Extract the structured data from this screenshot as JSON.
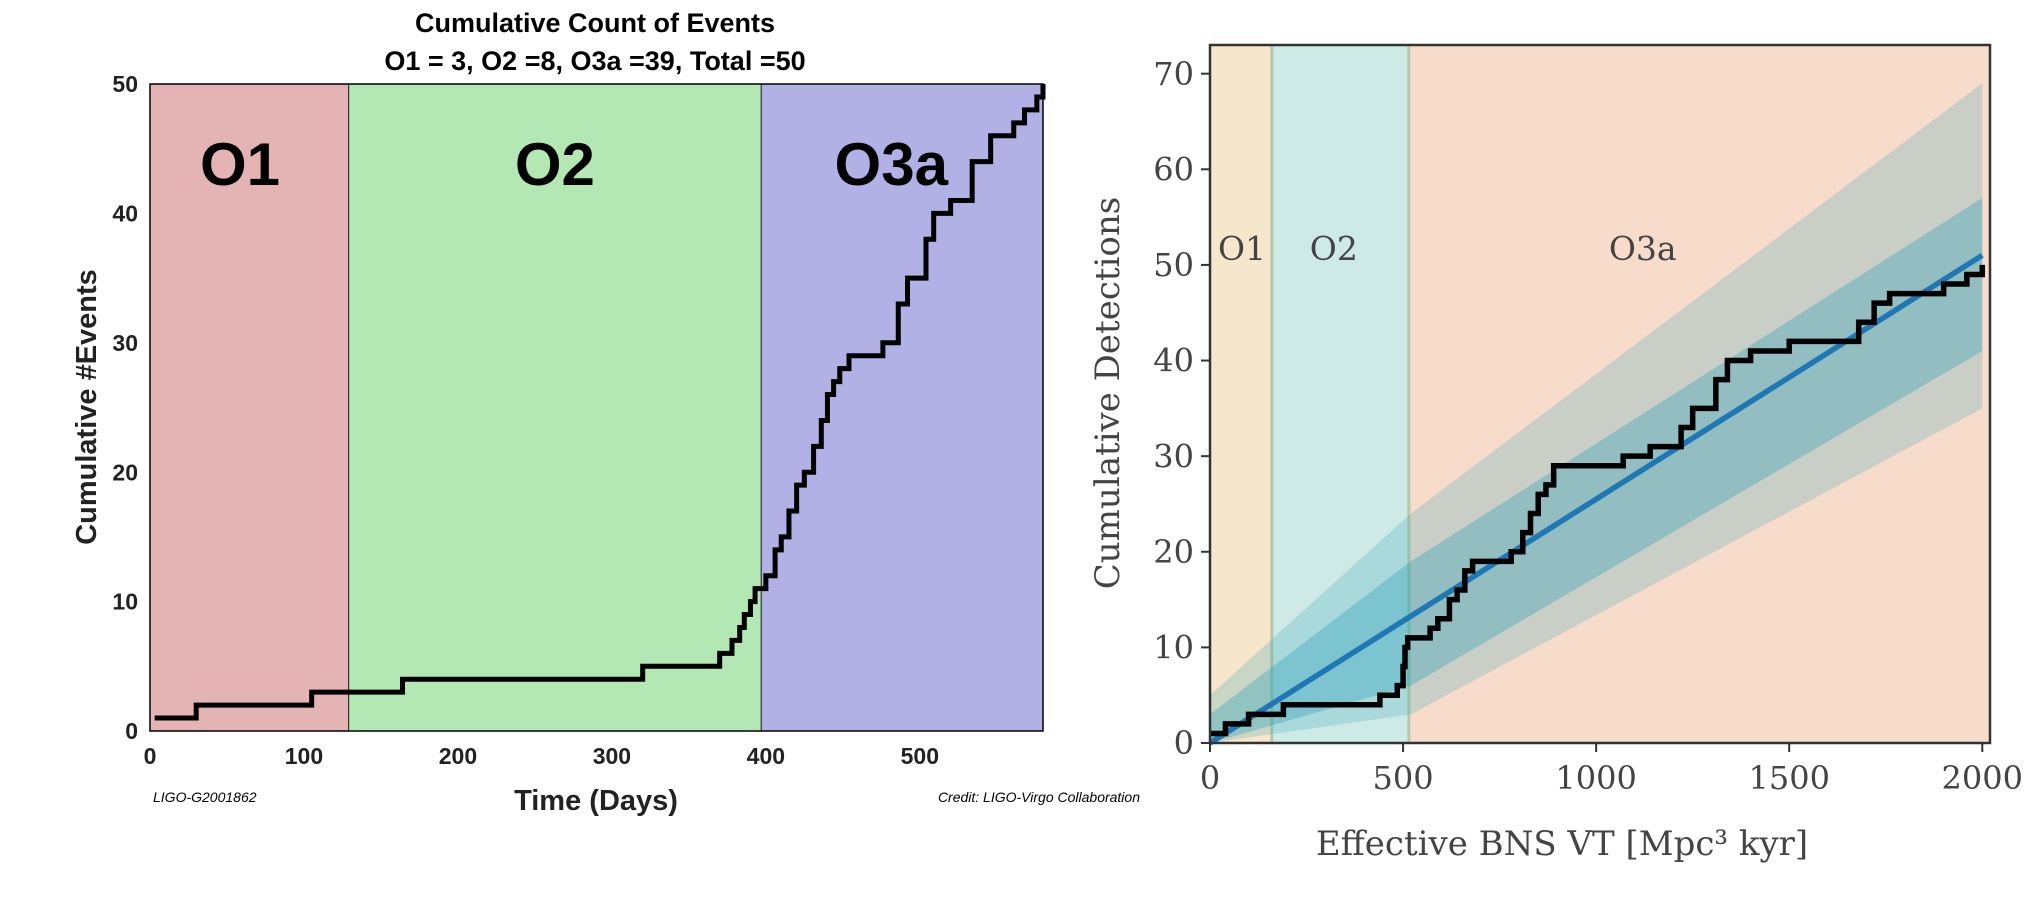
{
  "chart_data": [
    {
      "type": "line",
      "title": "Cumulative Count of Events",
      "subtitle": "O1 = 3, O2 =8, O3a =39, Total =50",
      "xlabel": "Time (Days)",
      "ylabel": "Cumulative #Events",
      "xlim": [
        0,
        580
      ],
      "ylim": [
        0,
        50
      ],
      "xticks": [
        0,
        100,
        200,
        300,
        400,
        500
      ],
      "yticks": [
        0,
        10,
        20,
        30,
        40,
        50
      ],
      "regions": [
        {
          "label": "O1",
          "start": 0,
          "end": 129,
          "color": "#e4b4b4"
        },
        {
          "label": "O2",
          "start": 129,
          "end": 397,
          "color": "#b3e7b3"
        },
        {
          "label": "O3a",
          "start": 397,
          "end": 580,
          "color": "#b1b1e6"
        }
      ],
      "grid": false,
      "footer_left": "LIGO-G2001862",
      "footer_right": "Credit: LIGO-Virgo Collaboration",
      "series": [
        {
          "color": "#000000",
          "points": [
            [
              3,
              1
            ],
            [
              30,
              1
            ],
            [
              30,
              2
            ],
            [
              105,
              2
            ],
            [
              105,
              3
            ],
            [
              164,
              3
            ],
            [
              164,
              4
            ],
            [
              320,
              4
            ],
            [
              320,
              5
            ],
            [
              370,
              5
            ],
            [
              370,
              6
            ],
            [
              378,
              6
            ],
            [
              378,
              7
            ],
            [
              383,
              7
            ],
            [
              383,
              8
            ],
            [
              386,
              8
            ],
            [
              386,
              9
            ],
            [
              390,
              9
            ],
            [
              390,
              10
            ],
            [
              393,
              10
            ],
            [
              393,
              11
            ],
            [
              400,
              11
            ],
            [
              400,
              12
            ],
            [
              406,
              12
            ],
            [
              406,
              14
            ],
            [
              410,
              14
            ],
            [
              410,
              15
            ],
            [
              415,
              15
            ],
            [
              415,
              17
            ],
            [
              420,
              17
            ],
            [
              420,
              19
            ],
            [
              425,
              19
            ],
            [
              425,
              20
            ],
            [
              431,
              20
            ],
            [
              431,
              22
            ],
            [
              436,
              22
            ],
            [
              436,
              24
            ],
            [
              440,
              24
            ],
            [
              440,
              26
            ],
            [
              444,
              26
            ],
            [
              444,
              27
            ],
            [
              448,
              27
            ],
            [
              448,
              28
            ],
            [
              454,
              28
            ],
            [
              454,
              29
            ],
            [
              476,
              29
            ],
            [
              476,
              30
            ],
            [
              486,
              30
            ],
            [
              486,
              33
            ],
            [
              492,
              33
            ],
            [
              492,
              35
            ],
            [
              504,
              35
            ],
            [
              504,
              38
            ],
            [
              509,
              38
            ],
            [
              509,
              40
            ],
            [
              520,
              40
            ],
            [
              520,
              41
            ],
            [
              534,
              41
            ],
            [
              534,
              44
            ],
            [
              546,
              44
            ],
            [
              546,
              46
            ],
            [
              561,
              46
            ],
            [
              561,
              47
            ],
            [
              568,
              47
            ],
            [
              568,
              48
            ],
            [
              576,
              48
            ],
            [
              576,
              49
            ],
            [
              580,
              49
            ],
            [
              580,
              50
            ]
          ]
        }
      ]
    },
    {
      "type": "line",
      "xlabel": "Effective BNS VT [Mpc³ kyr]",
      "ylabel": "Cumulative Detections",
      "xlim": [
        0,
        2020
      ],
      "ylim": [
        0,
        73
      ],
      "xticks": [
        0,
        500,
        1000,
        1500,
        2000
      ],
      "yticks": [
        0,
        10,
        20,
        30,
        40,
        50,
        60,
        70
      ],
      "regions": [
        {
          "label": "O1",
          "start": 0,
          "end": 160,
          "color": "#f6e6cb"
        },
        {
          "label": "O2",
          "start": 160,
          "end": 515,
          "color": "#cdeae6"
        },
        {
          "label": "O3a",
          "start": 515,
          "end": 2020,
          "color": "#f7dccb"
        }
      ],
      "grid": false,
      "series": [
        {
          "color": "#000000",
          "points": [
            [
              0,
              1
            ],
            [
              40,
              1
            ],
            [
              40,
              2
            ],
            [
              100,
              2
            ],
            [
              100,
              3
            ],
            [
              190,
              3
            ],
            [
              190,
              4
            ],
            [
              440,
              4
            ],
            [
              440,
              5
            ],
            [
              485,
              5
            ],
            [
              485,
              6
            ],
            [
              500,
              6
            ],
            [
              500,
              8
            ],
            [
              505,
              8
            ],
            [
              505,
              10
            ],
            [
              512,
              10
            ],
            [
              512,
              11
            ],
            [
              570,
              11
            ],
            [
              570,
              12
            ],
            [
              590,
              12
            ],
            [
              590,
              13
            ],
            [
              620,
              13
            ],
            [
              620,
              15
            ],
            [
              640,
              15
            ],
            [
              640,
              16
            ],
            [
              660,
              16
            ],
            [
              660,
              18
            ],
            [
              680,
              18
            ],
            [
              680,
              19
            ],
            [
              780,
              19
            ],
            [
              780,
              20
            ],
            [
              810,
              20
            ],
            [
              810,
              22
            ],
            [
              830,
              22
            ],
            [
              830,
              24
            ],
            [
              850,
              24
            ],
            [
              850,
              26
            ],
            [
              870,
              26
            ],
            [
              870,
              27
            ],
            [
              890,
              27
            ],
            [
              890,
              29
            ],
            [
              1070,
              29
            ],
            [
              1070,
              30
            ],
            [
              1140,
              30
            ],
            [
              1140,
              31
            ],
            [
              1220,
              31
            ],
            [
              1220,
              33
            ],
            [
              1250,
              33
            ],
            [
              1250,
              35
            ],
            [
              1310,
              35
            ],
            [
              1310,
              38
            ],
            [
              1340,
              38
            ],
            [
              1340,
              40
            ],
            [
              1400,
              40
            ],
            [
              1400,
              41
            ],
            [
              1500,
              41
            ],
            [
              1500,
              42
            ],
            [
              1680,
              42
            ],
            [
              1680,
              44
            ],
            [
              1720,
              44
            ],
            [
              1720,
              46
            ],
            [
              1760,
              46
            ],
            [
              1760,
              47
            ],
            [
              1900,
              47
            ],
            [
              1900,
              48
            ],
            [
              1960,
              48
            ],
            [
              1960,
              49
            ],
            [
              2000,
              49
            ],
            [
              2000,
              50
            ]
          ]
        },
        {
          "color": "#1f78b4",
          "points": [
            [
              0,
              0
            ],
            [
              2000,
              51
            ]
          ]
        }
      ],
      "bands": [
        {
          "color": "#2a9fb6",
          "opacity": 0.35,
          "lower": [
            [
              0,
              0
            ],
            [
              520,
              6
            ],
            [
              2000,
              41
            ]
          ],
          "upper": [
            [
              0,
              3
            ],
            [
              520,
              19
            ],
            [
              2000,
              57
            ]
          ]
        },
        {
          "color": "#2a9fb6",
          "opacity": 0.22,
          "lower": [
            [
              0,
              0
            ],
            [
              520,
              3
            ],
            [
              2000,
              35
            ]
          ],
          "upper": [
            [
              0,
              5
            ],
            [
              520,
              24
            ],
            [
              2000,
              69
            ]
          ]
        }
      ]
    }
  ]
}
